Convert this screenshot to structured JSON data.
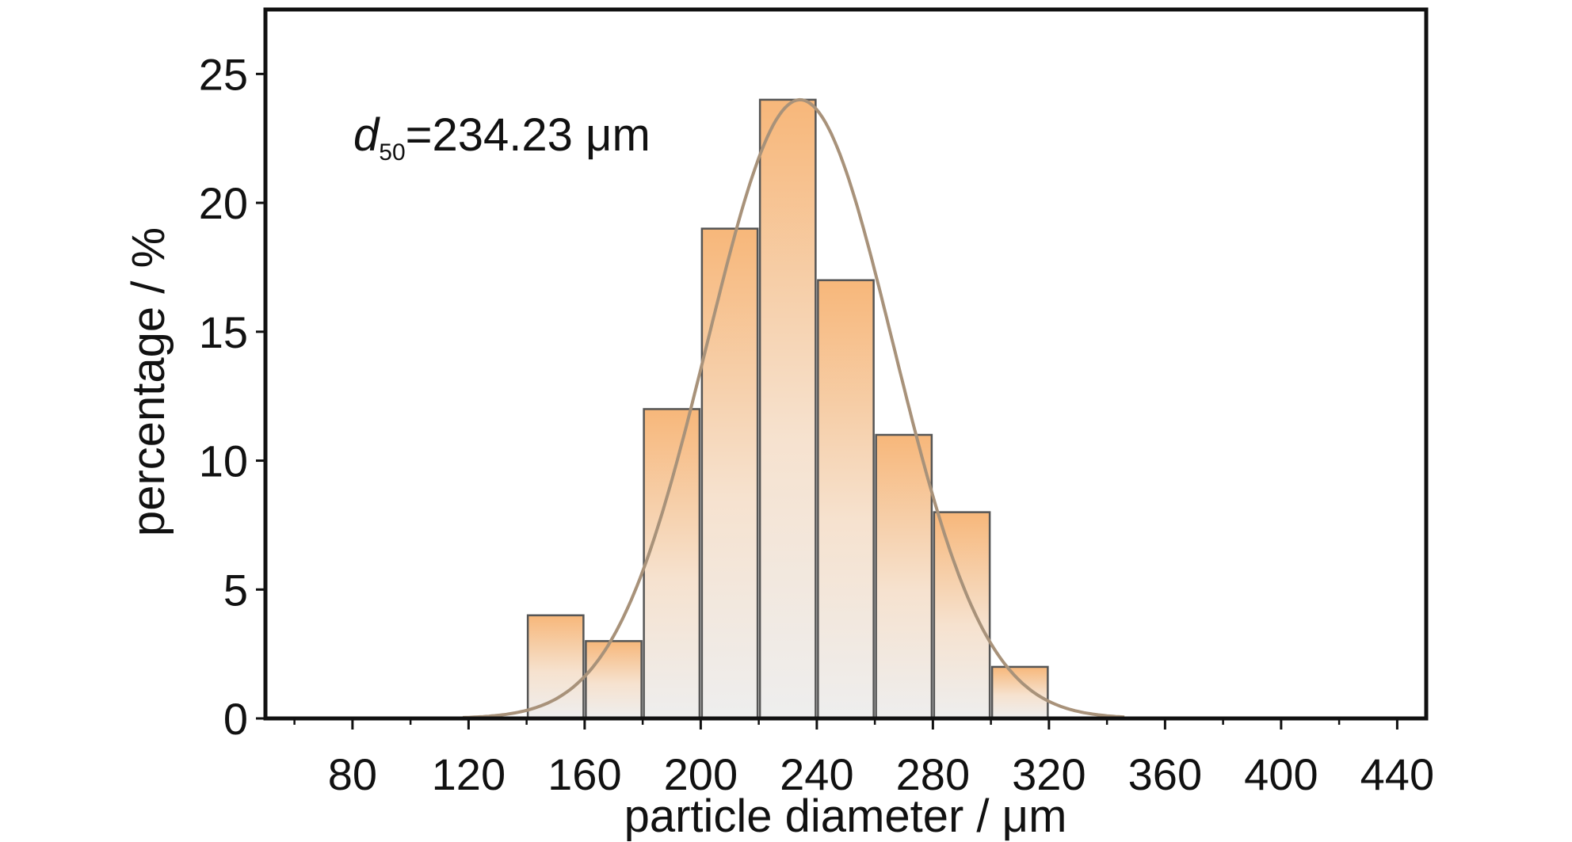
{
  "chart_data": {
    "type": "bar",
    "xlabel": "particle diameter / μm",
    "ylabel": "percentage / %",
    "xlim": [
      50,
      450
    ],
    "ylim": [
      0,
      27.5
    ],
    "x_ticks": [
      80,
      120,
      160,
      200,
      240,
      280,
      320,
      360,
      400,
      440
    ],
    "y_ticks": [
      0,
      5,
      10,
      15,
      20,
      25
    ],
    "bins": [
      {
        "x0": 140,
        "x1": 160,
        "value": 4
      },
      {
        "x0": 160,
        "x1": 180,
        "value": 3
      },
      {
        "x0": 180,
        "x1": 200,
        "value": 12
      },
      {
        "x0": 200,
        "x1": 220,
        "value": 19
      },
      {
        "x0": 220,
        "x1": 240,
        "value": 24
      },
      {
        "x0": 240,
        "x1": 260,
        "value": 17
      },
      {
        "x0": 260,
        "x1": 280,
        "value": 11
      },
      {
        "x0": 280,
        "x1": 300,
        "value": 8
      },
      {
        "x0": 300,
        "x1": 320,
        "value": 2
      }
    ],
    "fit_curve": {
      "type": "gaussian",
      "mean": 234.23,
      "peak": 24,
      "sigma": 32
    },
    "annotation": {
      "symbol": "d",
      "subscript": "50",
      "text": "=234.23 μm"
    },
    "grid": false,
    "colors": {
      "bar_top": "#f7b77a",
      "bar_bottom": "#eeeeee",
      "bar_edge": "#555555",
      "curve": "#a8927a",
      "axis": "#111111"
    }
  }
}
